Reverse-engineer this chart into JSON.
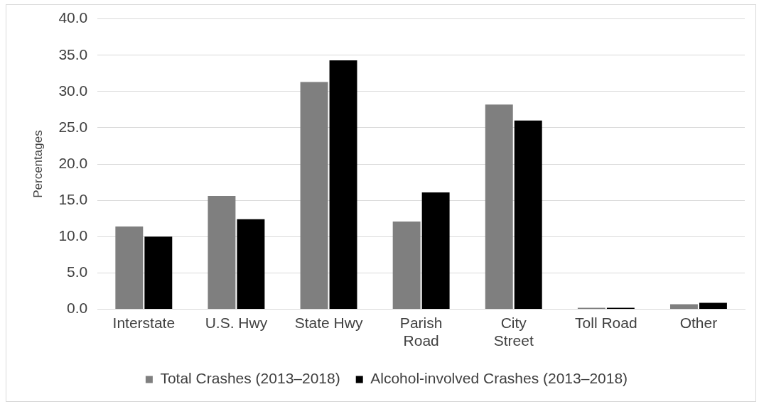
{
  "chart_data": {
    "type": "bar",
    "ylabel": "Percentages",
    "categories": [
      "Interstate",
      "U.S. Hwy",
      "State Hwy",
      "Parish Road",
      "City Street",
      "Toll Road",
      "Other"
    ],
    "series": [
      {
        "name": "Total Crashes (2013–2018)",
        "color": "#7f7f7f",
        "values": [
          11.4,
          15.6,
          31.3,
          12.1,
          28.2,
          0.2,
          0.7
        ]
      },
      {
        "name": "Alcohol-involved Crashes (2013–2018)",
        "color": "#000000",
        "values": [
          10.0,
          12.4,
          34.3,
          16.1,
          26.0,
          0.2,
          0.9
        ]
      }
    ],
    "ylim": [
      0,
      40
    ],
    "yticks": [
      {
        "value": 0,
        "label": "0.0"
      },
      {
        "value": 5,
        "label": "5.0"
      },
      {
        "value": 10,
        "label": "10.0"
      },
      {
        "value": 15,
        "label": "15.0"
      },
      {
        "value": 20,
        "label": "20.0"
      },
      {
        "value": 25,
        "label": "25.0"
      },
      {
        "value": 30,
        "label": "30.0"
      },
      {
        "value": 35,
        "label": "35.0"
      },
      {
        "value": 40,
        "label": "40.0"
      }
    ],
    "grid": "y",
    "legend": "bottom"
  }
}
